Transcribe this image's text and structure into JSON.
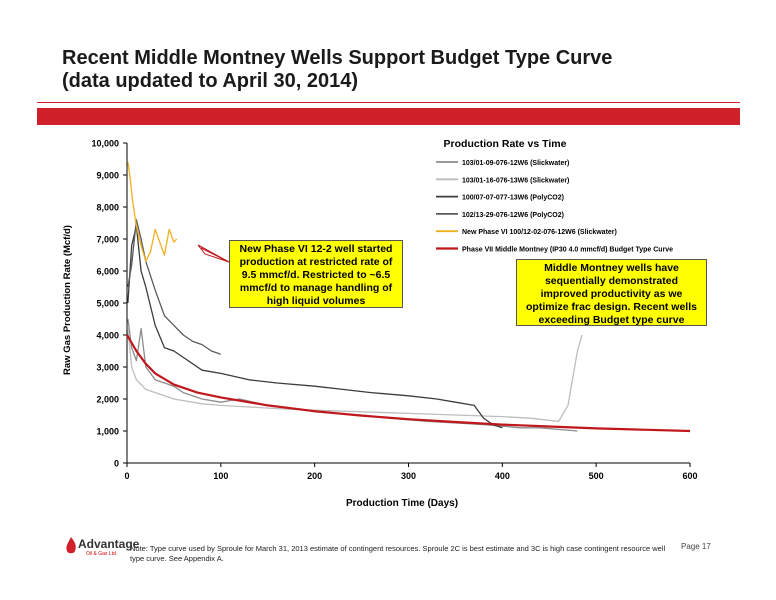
{
  "slide": {
    "title_line1": "Recent Middle Montney Wells Support Budget Type Curve",
    "title_line2": "(data updated to April 30, 2014)",
    "footer_note": "Note: Type curve used by Sproule for March 31, 2013 estimate of contingent resources. Sproule 2C is best estimate and 3C is high case contingent resource well type curve. See Appendix A.",
    "page_number": "Page 17",
    "logo_text": "Advantage",
    "logo_sub": "Oil & Gas Ltd.",
    "brand_color": "#d0202a"
  },
  "callouts": {
    "left": "New Phase VI 12-2 well started production at restricted rate of 9.5 mmcf/d. Restricted to ~6.5 mmcf/d to manage handling of high liquid volumes",
    "right": "Middle Montney wells have sequentially demonstrated improved productivity as we optimize frac design.  Recent wells exceeding Budget type curve"
  },
  "chart_data": {
    "type": "line",
    "title": "Production Rate vs Time",
    "xlabel": "Production Time (Days)",
    "ylabel": "Raw Gas Production Rate (Mcf/d)",
    "xlim": [
      0,
      600
    ],
    "ylim": [
      0,
      10000
    ],
    "x_ticks": [
      "0",
      "100",
      "200",
      "300",
      "400",
      "500",
      "600"
    ],
    "y_ticks": [
      "0",
      "1,000",
      "2,000",
      "3,000",
      "4,000",
      "5,000",
      "6,000",
      "7,000",
      "8,000",
      "9,000",
      "10,000"
    ],
    "grid": false,
    "legend_position": "top-right",
    "series": [
      {
        "name": "103/01-09-076-12W6 (Slickwater)",
        "color": "#8c8c8c",
        "x": [
          1,
          5,
          10,
          15,
          20,
          30,
          40,
          50,
          60,
          80,
          100,
          120,
          150,
          180,
          200,
          220,
          250,
          280,
          300,
          320,
          350,
          380,
          400,
          420,
          440,
          460,
          480
        ],
        "y": [
          4500,
          3600,
          3200,
          4200,
          3000,
          2600,
          2500,
          2400,
          2200,
          2000,
          1900,
          2000,
          1800,
          1700,
          1600,
          1550,
          1500,
          1400,
          1350,
          1300,
          1250,
          1200,
          1150,
          1100,
          1100,
          1050,
          1000
        ]
      },
      {
        "name": "103/01-16-076-13W6 (Slickwater)",
        "color": "#bdbdbd",
        "x": [
          1,
          5,
          10,
          20,
          30,
          40,
          50,
          60,
          80,
          100,
          130,
          160,
          200,
          250,
          300,
          350,
          400,
          430,
          460,
          470,
          480,
          485
        ],
        "y": [
          4200,
          3000,
          2600,
          2300,
          2200,
          2100,
          2000,
          1950,
          1850,
          1800,
          1750,
          1700,
          1650,
          1600,
          1550,
          1500,
          1450,
          1400,
          1300,
          1800,
          3500,
          4000
        ]
      },
      {
        "name": "100/07-07-077-13W6 (PolyCO2)",
        "color": "#3c3c3c",
        "x": [
          1,
          5,
          10,
          15,
          20,
          30,
          40,
          50,
          60,
          80,
          100,
          130,
          160,
          200,
          230,
          260,
          300,
          330,
          350,
          370,
          380,
          390,
          400
        ],
        "y": [
          5000,
          6800,
          7400,
          6000,
          5500,
          4300,
          3600,
          3500,
          3300,
          2900,
          2800,
          2600,
          2500,
          2400,
          2300,
          2200,
          2100,
          2000,
          1900,
          1800,
          1400,
          1200,
          1100
        ]
      },
      {
        "name": "102/13-29-076-12W6 (PolyCO2)",
        "color": "#5a5a5a",
        "x": [
          1,
          5,
          10,
          15,
          20,
          30,
          40,
          50,
          60,
          70,
          80,
          90,
          100
        ],
        "y": [
          5500,
          6200,
          7600,
          7000,
          6300,
          5400,
          4600,
          4300,
          4000,
          3800,
          3700,
          3500,
          3400
        ]
      },
      {
        "name": "New Phase VI 100/12-02-076-12W6 (Slickwater)",
        "color": "#f0b020",
        "x": [
          1,
          3,
          6,
          10,
          15,
          20,
          25,
          30,
          35,
          40,
          45,
          50,
          53
        ],
        "y": [
          9400,
          9000,
          8200,
          7400,
          6800,
          6300,
          6600,
          7300,
          6900,
          6500,
          7300,
          6900,
          7000
        ]
      },
      {
        "name": "Phase VII Middle Montney (IP30 4.0 mmcf/d) Budget Type Curve",
        "color": "#c0171c",
        "x": [
          0,
          10,
          20,
          30,
          50,
          75,
          100,
          150,
          200,
          250,
          300,
          350,
          400,
          450,
          500,
          550,
          600
        ],
        "y": [
          4000,
          3500,
          3100,
          2800,
          2450,
          2200,
          2050,
          1800,
          1620,
          1480,
          1370,
          1280,
          1200,
          1140,
          1080,
          1040,
          1000
        ]
      }
    ]
  }
}
